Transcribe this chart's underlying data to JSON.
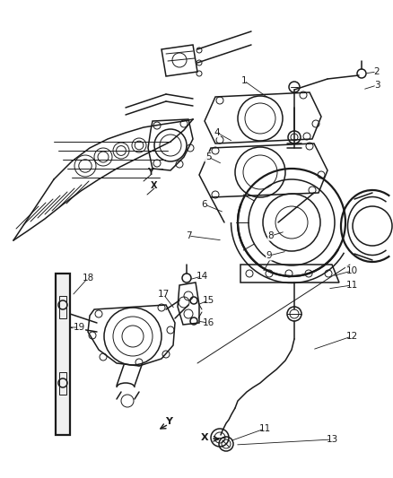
{
  "background_color": "#ffffff",
  "line_color": "#1a1a1a",
  "label_color": "#1a1a1a",
  "thin_lw": 0.7,
  "med_lw": 1.1,
  "thick_lw": 1.6,
  "fig_width": 4.38,
  "fig_height": 5.33,
  "dpi": 100,
  "xlim": [
    0,
    438
  ],
  "ylim": [
    0,
    533
  ]
}
